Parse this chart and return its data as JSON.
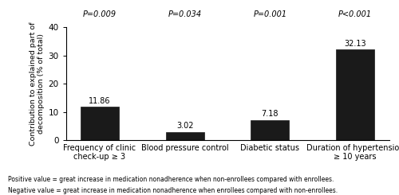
{
  "categories": [
    "Frequency of clinic\ncheck-up ≥ 3",
    "Blood pressure control",
    "Diabetic status",
    "Duration of hypertension\n≥ 10 years"
  ],
  "values": [
    11.86,
    3.02,
    7.18,
    32.13
  ],
  "bar_color": "#1a1a1a",
  "p_values": [
    "P=0.009",
    "P=0.034",
    "P=0.001",
    "P<0.001"
  ],
  "ylabel": "Contribution to explained part of\ndecomposition (% of total)",
  "ylim": [
    0,
    40
  ],
  "yticks": [
    0,
    10,
    20,
    30,
    40
  ],
  "bar_width": 0.45,
  "footnote_line1": "Positive value = great increase in medication nonadherence when non-enrollees compared with enrollees.",
  "footnote_line2": "Negative value = great increase in medication nonadherence when enrollees compared with non-enrollees.",
  "value_labels": [
    "11.86",
    "3.02",
    "7.18",
    "32.13"
  ],
  "background_color": "#ffffff"
}
